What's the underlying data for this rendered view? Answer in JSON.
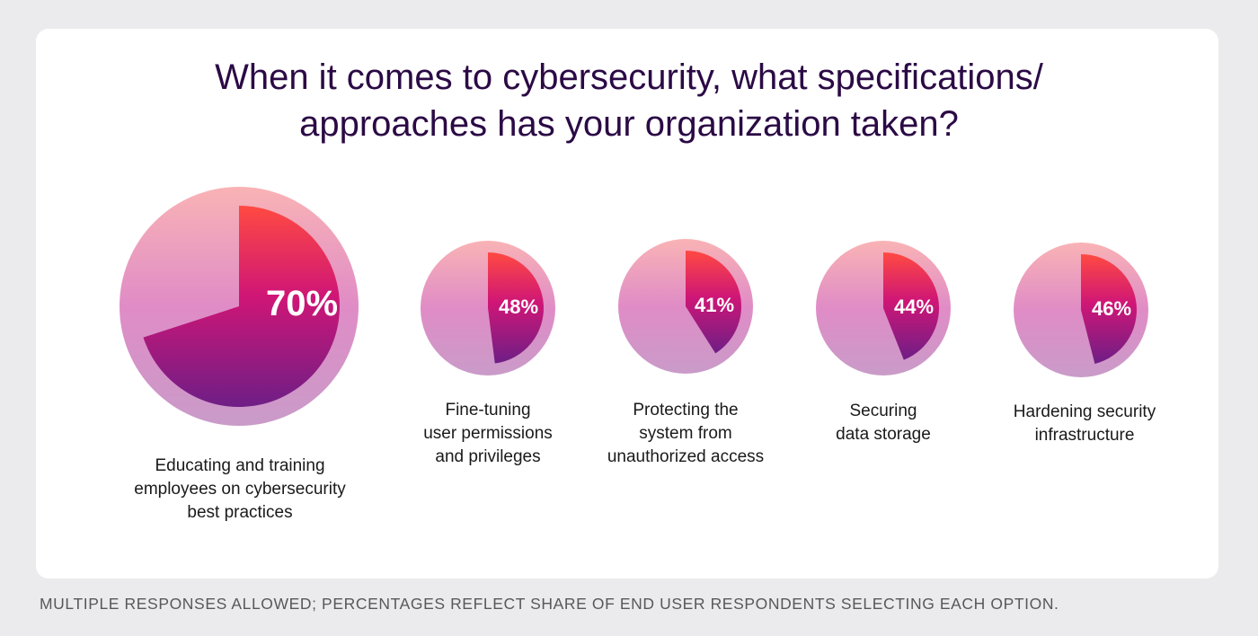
{
  "title_lines": [
    "When it comes to cybersecurity, what specifications/",
    "approaches has your organization taken?"
  ],
  "chart_data": {
    "type": "pie",
    "title": "When it comes to cybersecurity, what specifications/ approaches has your organization taken?",
    "categories": [
      "Educating and training employees on cybersecurity best practices",
      "Fine-tuning user permissions and privileges",
      "Protecting the system from unauthorized access",
      "Securing data storage",
      "Hardening security infrastructure"
    ],
    "values": [
      70,
      48,
      41,
      44,
      46
    ],
    "value_labels": [
      "70%",
      "48%",
      "41%",
      "44%",
      "46%"
    ],
    "unit": "%"
  },
  "labels": [
    [
      "Educating and training",
      "employees on cybersecurity",
      "best practices"
    ],
    [
      "Fine-tuning",
      "user permissions",
      "and privileges"
    ],
    [
      "Protecting the",
      "system from",
      "unauthorized access"
    ],
    [
      "Securing",
      "data storage"
    ],
    [
      "Hardening security",
      "infrastructure"
    ]
  ],
  "footnote": "MULTIPLE RESPONSES ALLOWED; PERCENTAGES REFLECT SHARE OF END USER RESPONDENTS SELECTING EACH OPTION.",
  "colors": {
    "title": "#2b0a45",
    "outer_top": "#f9b3b5",
    "outer_mid": "#e08cc6",
    "outer_bottom": "#c99bc8",
    "slice_top": "#ff4a42",
    "slice_mid": "#cf1676",
    "slice_bottom": "#6e1e86"
  }
}
